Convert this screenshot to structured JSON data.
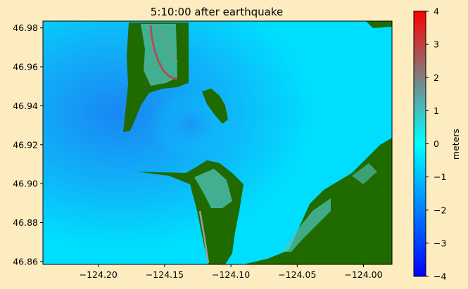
{
  "chart_data": {
    "type": "heatmap",
    "title": "5:10:00 after earthquake",
    "xlabel": "",
    "ylabel": "",
    "xlim": [
      -124.2418,
      -123.9785
    ],
    "ylim": [
      46.8585,
      46.9835
    ],
    "x_ticks": [
      -124.2,
      -124.15,
      -124.1,
      -124.05,
      -124.0
    ],
    "x_tick_labels": [
      "−124.20",
      "−124.15",
      "−124.10",
      "−124.05",
      "−124.00"
    ],
    "y_ticks": [
      46.86,
      46.88,
      46.9,
      46.92,
      46.94,
      46.96,
      46.98
    ],
    "y_tick_labels": [
      "46.86",
      "46.88",
      "46.90",
      "46.92",
      "46.94",
      "46.96",
      "46.98"
    ],
    "grid": false,
    "colorbar": {
      "label": "meters",
      "range": [
        -4,
        4
      ],
      "ticks": [
        4,
        3,
        2,
        1,
        0,
        -1,
        -2,
        -3,
        -4
      ],
      "tick_labels": [
        "4",
        "3",
        "2",
        "1",
        "0",
        "−1",
        "−2",
        "−3",
        "−4"
      ],
      "colormap": [
        "#0000ff",
        "#00ffff",
        "#ff0000"
      ]
    },
    "colors": {
      "background": "#fdecc0",
      "water": "#00e8ff",
      "deep_blue": "#1e78f0",
      "land": "#1f6b00",
      "inundation": "#4fc7c0"
    }
  }
}
